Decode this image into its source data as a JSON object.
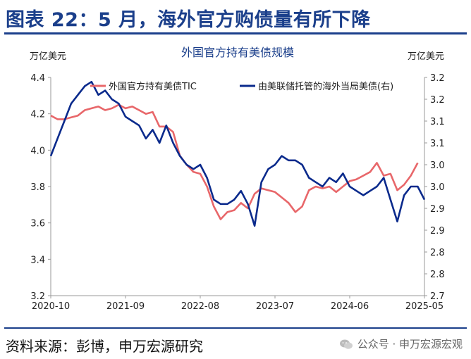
{
  "header": {
    "title": "图表 22：5 月，海外官方购债量有所下降"
  },
  "footer": {
    "source": "资料来源：彭博，申万宏源研究",
    "watermark": "公众号 · 申万宏源宏观"
  },
  "colors": {
    "title": "#1b3f8b",
    "tic_series": "#e8676a",
    "custody_series": "#0a2a8c",
    "axis": "#999999"
  },
  "chart_data": {
    "type": "line",
    "title": "外国官方持有美债规模",
    "ylabel_left": "万亿美元",
    "ylabel_right": "万亿美元",
    "ylim_left": [
      3.2,
      4.4
    ],
    "yticks_left": [
      "4.4",
      "4.2",
      "4.0",
      "3.8",
      "3.6",
      "3.4",
      "3.2"
    ],
    "ylim_right": [
      2.7,
      3.2
    ],
    "yticks_right": [
      "3.2",
      "3.2",
      "3.1",
      "3.1",
      "3.0",
      "3.0",
      "2.9",
      "2.9",
      "2.8",
      "2.8",
      "2.7"
    ],
    "xlim": [
      "2020-10",
      "2025-05"
    ],
    "xticks": [
      "2020-10",
      "2021-09",
      "2022-08",
      "2023-07",
      "2024-06",
      "2025-05"
    ],
    "grid": false,
    "legend": "top",
    "series": [
      {
        "name": "外国官方持有美债TIC",
        "axis": "left",
        "points": [
          [
            "2020-10",
            4.19
          ],
          [
            "2020-11",
            4.17
          ],
          [
            "2020-12",
            4.17
          ],
          [
            "2021-01",
            4.18
          ],
          [
            "2021-02",
            4.19
          ],
          [
            "2021-03",
            4.22
          ],
          [
            "2021-04",
            4.23
          ],
          [
            "2021-05",
            4.24
          ],
          [
            "2021-06",
            4.22
          ],
          [
            "2021-07",
            4.23
          ],
          [
            "2021-08",
            4.25
          ],
          [
            "2021-09",
            4.23
          ],
          [
            "2021-10",
            4.24
          ],
          [
            "2021-11",
            4.22
          ],
          [
            "2021-12",
            4.2
          ],
          [
            "2022-01",
            4.21
          ],
          [
            "2022-02",
            4.13
          ],
          [
            "2022-03",
            4.13
          ],
          [
            "2022-04",
            4.1
          ],
          [
            "2022-05",
            3.97
          ],
          [
            "2022-06",
            3.92
          ],
          [
            "2022-07",
            3.88
          ],
          [
            "2022-08",
            3.87
          ],
          [
            "2022-09",
            3.8
          ],
          [
            "2022-10",
            3.69
          ],
          [
            "2022-11",
            3.62
          ],
          [
            "2022-12",
            3.66
          ],
          [
            "2023-01",
            3.67
          ],
          [
            "2023-02",
            3.71
          ],
          [
            "2023-03",
            3.68
          ],
          [
            "2023-04",
            3.76
          ],
          [
            "2023-05",
            3.79
          ],
          [
            "2023-06",
            3.78
          ],
          [
            "2023-07",
            3.77
          ],
          [
            "2023-08",
            3.74
          ],
          [
            "2023-09",
            3.71
          ],
          [
            "2023-10",
            3.66
          ],
          [
            "2023-11",
            3.69
          ],
          [
            "2023-12",
            3.78
          ],
          [
            "2024-01",
            3.8
          ],
          [
            "2024-02",
            3.79
          ],
          [
            "2024-03",
            3.8
          ],
          [
            "2024-04",
            3.77
          ],
          [
            "2024-05",
            3.8
          ],
          [
            "2024-06",
            3.83
          ],
          [
            "2024-07",
            3.84
          ],
          [
            "2024-08",
            3.86
          ],
          [
            "2024-09",
            3.88
          ],
          [
            "2024-10",
            3.93
          ],
          [
            "2024-11",
            3.86
          ],
          [
            "2024-12",
            3.87
          ],
          [
            "2025-01",
            3.78
          ],
          [
            "2025-02",
            3.81
          ],
          [
            "2025-03",
            3.86
          ],
          [
            "2025-04",
            3.93
          ]
        ]
      },
      {
        "name": "由美联储托管的海外当局美债(右)",
        "axis": "right",
        "points": [
          [
            "2020-10",
            3.02
          ],
          [
            "2020-11",
            3.06
          ],
          [
            "2020-12",
            3.1
          ],
          [
            "2021-01",
            3.14
          ],
          [
            "2021-02",
            3.16
          ],
          [
            "2021-03",
            3.18
          ],
          [
            "2021-04",
            3.19
          ],
          [
            "2021-05",
            3.16
          ],
          [
            "2021-06",
            3.17
          ],
          [
            "2021-07",
            3.15
          ],
          [
            "2021-08",
            3.14
          ],
          [
            "2021-09",
            3.11
          ],
          [
            "2021-10",
            3.1
          ],
          [
            "2021-11",
            3.09
          ],
          [
            "2021-12",
            3.06
          ],
          [
            "2022-01",
            3.08
          ],
          [
            "2022-02",
            3.05
          ],
          [
            "2022-03",
            3.09
          ],
          [
            "2022-04",
            3.05
          ],
          [
            "2022-05",
            3.02
          ],
          [
            "2022-06",
            3.0
          ],
          [
            "2022-07",
            2.99
          ],
          [
            "2022-08",
            3.0
          ],
          [
            "2022-09",
            2.97
          ],
          [
            "2022-10",
            2.92
          ],
          [
            "2022-11",
            2.91
          ],
          [
            "2022-12",
            2.91
          ],
          [
            "2023-01",
            2.92
          ],
          [
            "2023-02",
            2.94
          ],
          [
            "2023-03",
            2.91
          ],
          [
            "2023-04",
            2.86
          ],
          [
            "2023-05",
            2.96
          ],
          [
            "2023-06",
            2.99
          ],
          [
            "2023-07",
            3.0
          ],
          [
            "2023-08",
            3.02
          ],
          [
            "2023-09",
            3.01
          ],
          [
            "2023-10",
            3.01
          ],
          [
            "2023-11",
            3.0
          ],
          [
            "2023-12",
            2.97
          ],
          [
            "2024-01",
            2.96
          ],
          [
            "2024-02",
            2.95
          ],
          [
            "2024-03",
            2.97
          ],
          [
            "2024-04",
            2.96
          ],
          [
            "2024-05",
            2.98
          ],
          [
            "2024-06",
            2.95
          ],
          [
            "2024-07",
            2.94
          ],
          [
            "2024-08",
            2.93
          ],
          [
            "2024-09",
            2.94
          ],
          [
            "2024-10",
            2.95
          ],
          [
            "2024-11",
            2.97
          ],
          [
            "2024-12",
            2.92
          ],
          [
            "2025-01",
            2.87
          ],
          [
            "2025-02",
            2.93
          ],
          [
            "2025-03",
            2.95
          ],
          [
            "2025-04",
            2.95
          ],
          [
            "2025-05",
            2.92
          ]
        ]
      }
    ]
  }
}
